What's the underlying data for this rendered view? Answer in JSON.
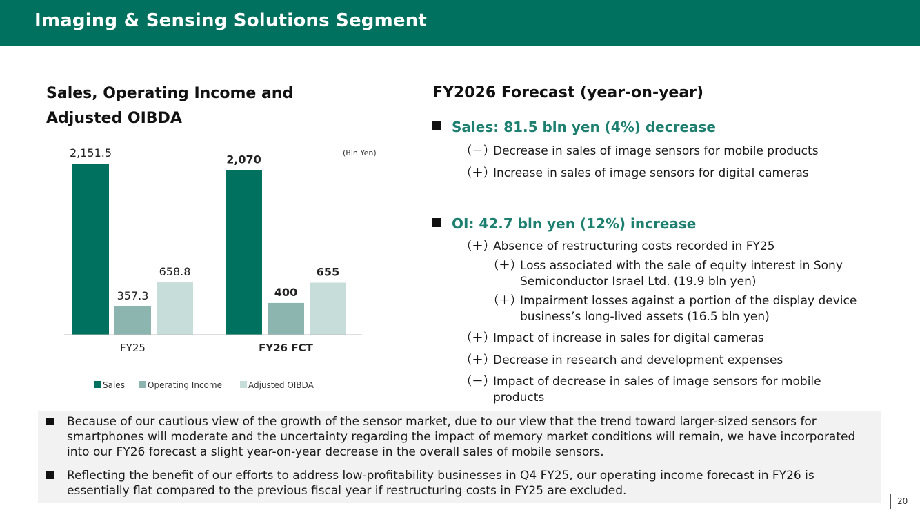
{
  "header": {
    "title": "Imaging & Sensing Solutions Segment"
  },
  "left": {
    "title": "Sales, Operating Income and Adjusted OIBDA"
  },
  "chart_data": {
    "type": "bar",
    "unit_label": "(Bln Yen)",
    "categories": [
      "FY25",
      "FY26 FCT"
    ],
    "series": [
      {
        "name": "Sales",
        "color": "#00705f",
        "values": [
          2151.5,
          2070
        ],
        "labels": [
          "2,151.5",
          "2,070"
        ]
      },
      {
        "name": "Operating Income",
        "color": "#8bb5ae",
        "values": [
          357.3,
          400
        ],
        "labels": [
          "357.3",
          "400"
        ]
      },
      {
        "name": "Adjusted OIBDA",
        "color": "#c6ddd9",
        "values": [
          658.8,
          655
        ],
        "labels": [
          "658.8",
          "655"
        ]
      }
    ],
    "bold_category": "FY26 FCT",
    "ylim": [
      0,
      2300
    ],
    "grid": false,
    "legend": "bottom"
  },
  "right": {
    "title": "FY2026 Forecast (year-on-year)",
    "sales": {
      "heading": "Sales: 81.5 bln yen (4%) decrease",
      "items": [
        {
          "marker": "（－）",
          "text": "Decrease in sales of image sensors for mobile products"
        },
        {
          "marker": "（＋）",
          "text": "Increase in sales of image sensors for digital cameras"
        }
      ]
    },
    "oi": {
      "heading": "OI: 42.7 bln yen (12%) increase",
      "items": [
        {
          "marker": "（＋）",
          "text": "Absence of restructuring costs recorded in FY25"
        },
        {
          "marker": "（＋）",
          "text": "Loss associated with the sale of equity interest in Sony Semiconductor Israel Ltd. (19.9 bln yen)"
        },
        {
          "marker": "（＋）",
          "text": "Impairment losses against a portion of the display device business’s long-lived assets (16.5 bln yen)"
        },
        {
          "marker": "（＋）",
          "text": "Impact of increase in sales for digital cameras"
        },
        {
          "marker": "（＋）",
          "text": "Decrease in research and development expenses"
        },
        {
          "marker": "（－）",
          "text": "Impact of decrease in sales of image sensors for mobile products"
        }
      ]
    }
  },
  "bottom_notes": [
    "Because of our cautious view of the growth of the sensor market, due to our view that the trend toward larger-sized sensors for smartphones will moderate and the uncertainty regarding the impact of memory market conditions will remain, we have incorporated into our FY26 forecast a slight year-on-year decrease in the overall sales of mobile sensors.",
    "Reflecting the benefit of our efforts to address low-profitability businesses in Q4 FY25, our operating income forecast in FY26 is essentially flat compared to the previous fiscal year if restructuring costs in FY25 are excluded."
  ],
  "page_number": "20"
}
